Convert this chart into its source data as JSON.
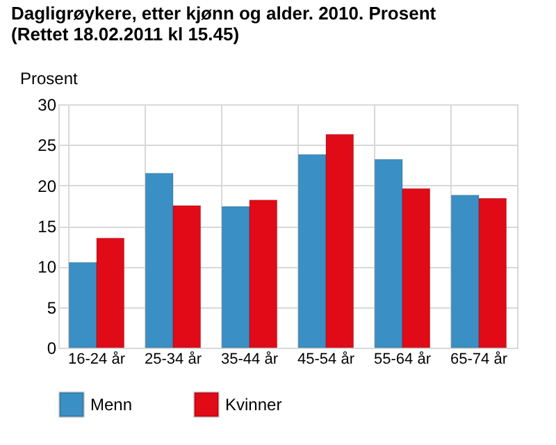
{
  "chart_data": {
    "type": "bar",
    "title": [
      "Dagligrøykere, etter kjønn og alder. 2010. Prosent",
      "(Rettet 18.02.2011 kl 15.45)"
    ],
    "ylabel": "Prosent",
    "categories": [
      "16-24 år",
      "25-34 år",
      "35-44 år",
      "45-54 år",
      "55-64 år",
      "65-74 år"
    ],
    "series": [
      {
        "name": "Menn",
        "color": "#3a8fc4",
        "values": [
          10.5,
          21.5,
          17.4,
          23.8,
          23.2,
          18.8
        ]
      },
      {
        "name": "Kvinner",
        "color": "#e10a17",
        "values": [
          13.5,
          17.5,
          18.2,
          26.3,
          19.6,
          18.4
        ]
      }
    ],
    "ylim": [
      0,
      30
    ],
    "yticks": [
      0,
      5,
      10,
      15,
      20,
      25,
      30
    ],
    "grid": true,
    "legend": "bottom"
  }
}
